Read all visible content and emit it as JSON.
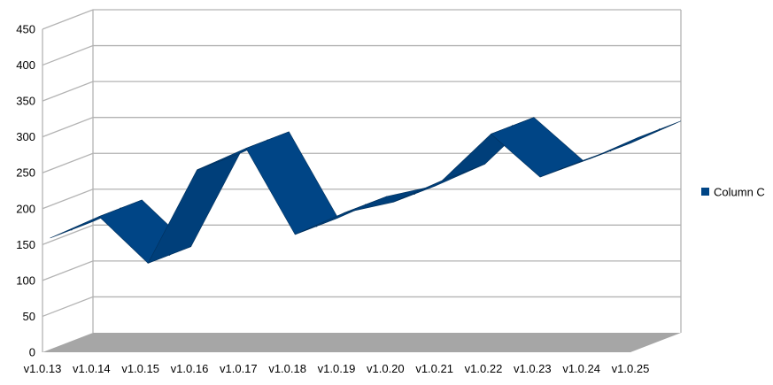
{
  "chart_data": {
    "type": "line",
    "style": "3d-ribbon",
    "categories": [
      "v1.0.13",
      "v1.0.14",
      "v1.0.15",
      "v1.0.16",
      "v1.0.17",
      "v1.0.18",
      "v1.0.19",
      "v1.0.20",
      "v1.0.21",
      "v1.0.22",
      "v1.0.23",
      "v1.0.24",
      "v1.0.25"
    ],
    "series": [
      {
        "name": "Column C",
        "values": [
          155,
          185,
          120,
          250,
          280,
          160,
          190,
          205,
          235,
          300,
          240,
          265,
          295
        ],
        "color": "#004586"
      }
    ],
    "ylim": [
      0,
      450
    ],
    "yticks": [
      0,
      50,
      100,
      150,
      200,
      250,
      300,
      350,
      400,
      450
    ],
    "grid": true,
    "legend_position": "right",
    "floor_color": "#a6a6a6",
    "grid_color": "#b3b3b3"
  }
}
